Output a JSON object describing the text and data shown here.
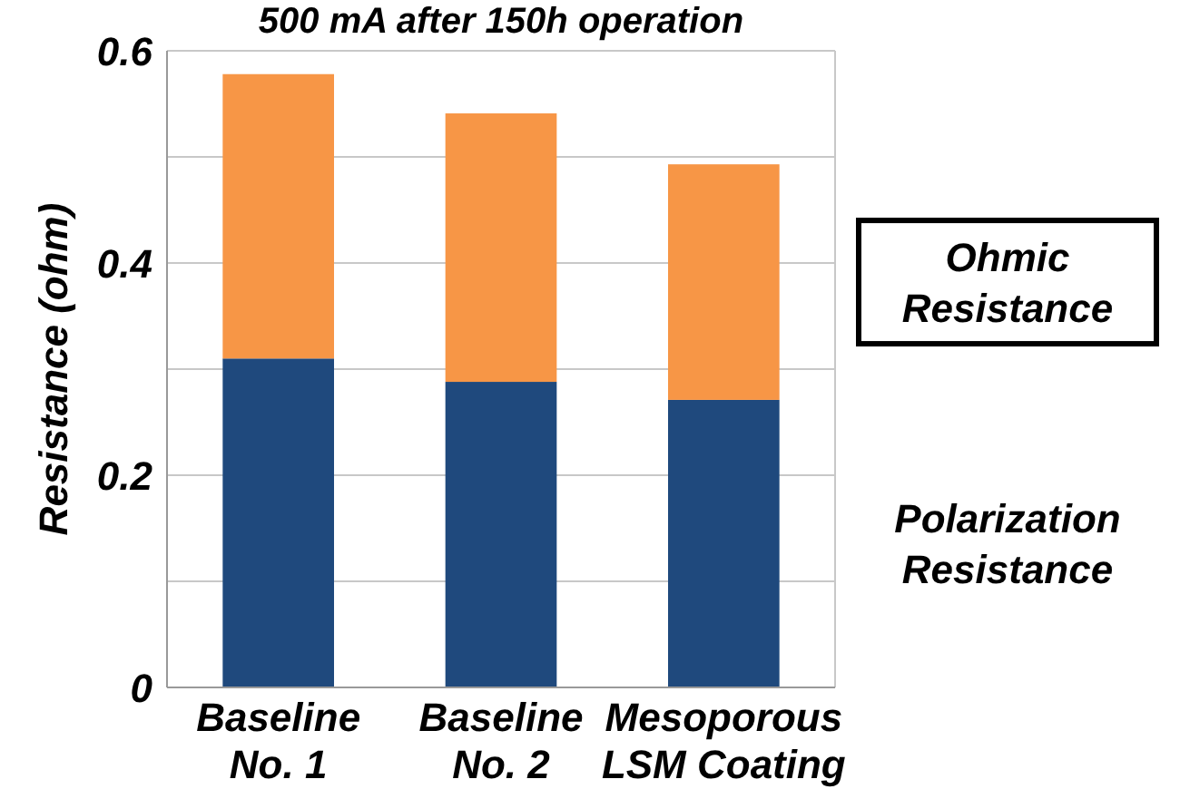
{
  "chart_data": {
    "type": "bar",
    "title": "500 mA after 150h operation",
    "ylabel": "Resistance (ohm)",
    "categories": [
      "Baseline\nNo. 1",
      "Baseline\nNo. 2",
      "Mesoporous\nLSM Coating"
    ],
    "stacked": true,
    "series": [
      {
        "name": "Polarization\nResistance",
        "color": "#1f497d",
        "values": [
          0.31,
          0.288,
          0.271
        ]
      },
      {
        "name": "Ohmic\nResistance",
        "color": "#f79646",
        "values": [
          0.268,
          0.253,
          0.222
        ]
      }
    ],
    "ylim": [
      0,
      0.6
    ],
    "yticks": [
      0,
      {
        "value": 0.1,
        "label": null
      },
      0.2,
      {
        "value": 0.3,
        "label": null
      },
      0.4,
      {
        "value": 0.5,
        "label": null
      },
      0.6
    ],
    "grid": "y",
    "legend": "right"
  }
}
